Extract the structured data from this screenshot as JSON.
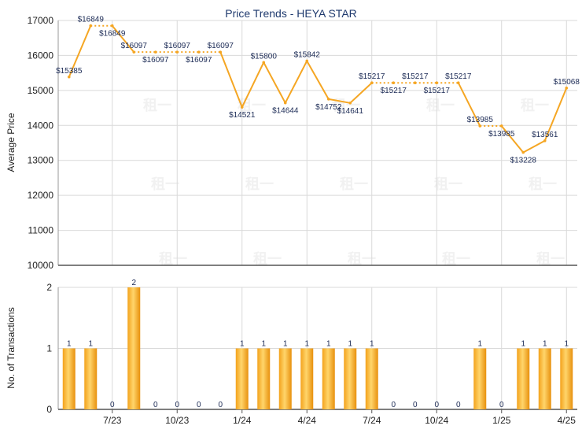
{
  "chart_data": [
    {
      "type": "line",
      "title": "Price Trends - HEYA STAR",
      "ylabel": "Average Price",
      "ylim": [
        10000,
        17000
      ],
      "yticks": [
        "10000",
        "11000",
        "12000",
        "13000",
        "14000",
        "15000",
        "16000",
        "17000"
      ],
      "color": "#f5a623",
      "grid": true,
      "values": [
        15385,
        16849,
        16849,
        16097,
        16097,
        16097,
        16097,
        16097,
        14521,
        15800,
        14644,
        15842,
        14752,
        14641,
        15217,
        15217,
        15217,
        15217,
        15217,
        13985,
        13985,
        13228,
        13561,
        15068
      ],
      "labels": [
        "$15385",
        "$16849",
        "$16849",
        "$16097",
        "$16097",
        "$16097",
        "$16097",
        "$16097",
        "$14521",
        "$15800",
        "$14644",
        "$15842",
        "$14752",
        "$14641",
        "$15217",
        "$15217",
        "$15217",
        "$15217",
        "$15217",
        "$13985",
        "$13985",
        "$13228",
        "$13561",
        "$15068"
      ]
    },
    {
      "type": "bar",
      "ylabel": "No. of Transactions",
      "ylim": [
        0,
        2
      ],
      "yticks": [
        "0",
        "1",
        "2"
      ],
      "color": "#f5a623",
      "grid": true,
      "values": [
        1,
        1,
        0,
        2,
        0,
        0,
        0,
        0,
        1,
        1,
        1,
        1,
        1,
        1,
        1,
        0,
        0,
        0,
        0,
        1,
        0,
        1,
        1,
        1
      ],
      "xtick_labels": [
        "7/23",
        "10/23",
        "1/24",
        "4/24",
        "7/24",
        "10/24",
        "1/25",
        "4/25"
      ]
    }
  ],
  "watermark": "租一"
}
